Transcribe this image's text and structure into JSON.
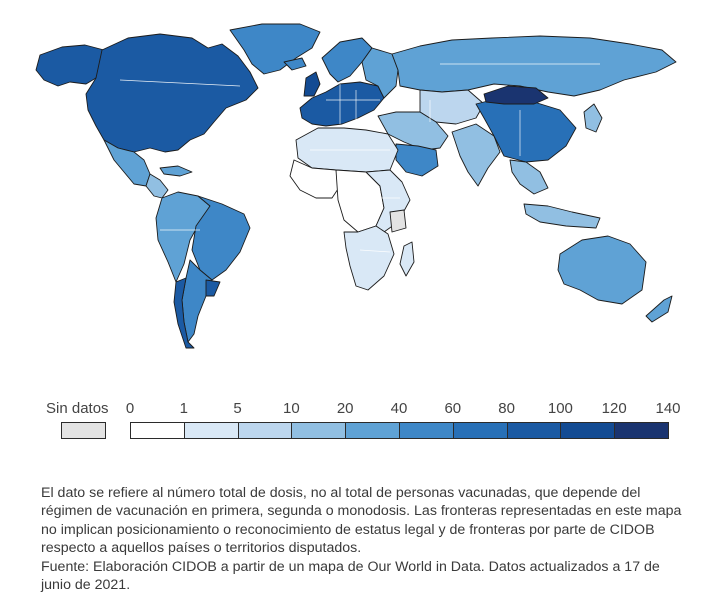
{
  "legend": {
    "no_data_label": "Sin datos",
    "no_data_color": "#e3e3e3",
    "ticks": [
      "0",
      "1",
      "5",
      "10",
      "20",
      "40",
      "60",
      "80",
      "100",
      "120",
      "140"
    ],
    "colors": [
      "#ffffff",
      "#d9e8f6",
      "#bcd6ee",
      "#91bfe2",
      "#5fa2d5",
      "#3e87c7",
      "#2870b7",
      "#1b5aa3",
      "#134b93",
      "#1a3470"
    ]
  },
  "map_data": {
    "classes": [
      {
        "region": "north-america",
        "color": "#1b5aa3"
      },
      {
        "region": "alaska",
        "color": "#1b5aa3"
      },
      {
        "region": "greenland",
        "color": "#3e87c7"
      },
      {
        "region": "mexico",
        "color": "#5fa2d5"
      },
      {
        "region": "central-america",
        "color": "#91bfe2"
      },
      {
        "region": "cuba",
        "color": "#5fa2d5"
      },
      {
        "region": "south-america-north",
        "color": "#5fa2d5"
      },
      {
        "region": "brazil",
        "color": "#3e87c7"
      },
      {
        "region": "chile",
        "color": "#1b5aa3"
      },
      {
        "region": "argentina",
        "color": "#3e87c7"
      },
      {
        "region": "uruguay",
        "color": "#1b5aa3"
      },
      {
        "region": "europe",
        "color": "#1b5aa3"
      },
      {
        "region": "uk",
        "color": "#134b93"
      },
      {
        "region": "scandinavia",
        "color": "#3e87c7"
      },
      {
        "region": "iceland",
        "color": "#3e87c7"
      },
      {
        "region": "eastern-europe",
        "color": "#5fa2d5"
      },
      {
        "region": "russia",
        "color": "#5fa2d5"
      },
      {
        "region": "central-asia",
        "color": "#bcd6ee"
      },
      {
        "region": "middle-east",
        "color": "#91bfe2"
      },
      {
        "region": "saudi-arabia",
        "color": "#3e87c7"
      },
      {
        "region": "india",
        "color": "#91bfe2"
      },
      {
        "region": "china",
        "color": "#2870b7"
      },
      {
        "region": "mongolia",
        "color": "#1a3470"
      },
      {
        "region": "japan",
        "color": "#91bfe2"
      },
      {
        "region": "southeast-asia",
        "color": "#91bfe2"
      },
      {
        "region": "indonesia",
        "color": "#91bfe2"
      },
      {
        "region": "australia",
        "color": "#5fa2d5"
      },
      {
        "region": "new-zealand",
        "color": "#5fa2d5"
      },
      {
        "region": "north-africa",
        "color": "#d9e8f6"
      },
      {
        "region": "west-africa",
        "color": "#ffffff"
      },
      {
        "region": "central-africa",
        "color": "#ffffff"
      },
      {
        "region": "east-africa",
        "color": "#d9e8f6"
      },
      {
        "region": "southern-africa",
        "color": "#d9e8f6"
      },
      {
        "region": "madagascar",
        "color": "#d9e8f6"
      },
      {
        "region": "no-data-areas",
        "color": "#e3e3e3"
      }
    ]
  },
  "note": {
    "line1": "El dato se refiere al número total de dosis, no al total de personas vacunadas, que depende del régimen de vacunación en primera, segunda o monodosis. Las fronteras representadas en este mapa no implican posicionamiento o reconocimiento de estatus legal y de fronteras por parte de CIDOB respecto a aquellos países o territorios disputados.",
    "line2": "Fuente: Elaboración CIDOB a partir de un mapa de Our World in Data. Datos actualizados a 17 de junio de 2021."
  }
}
